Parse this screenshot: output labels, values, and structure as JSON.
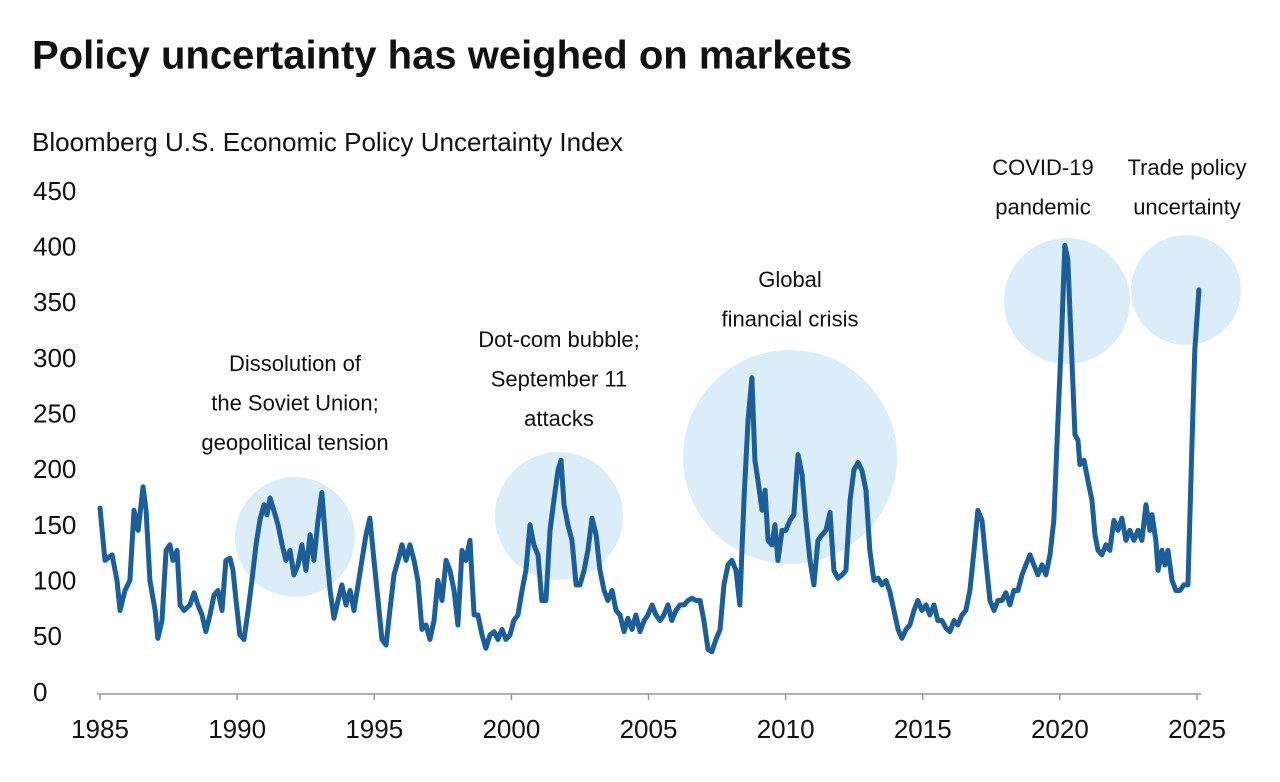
{
  "chart_data": {
    "type": "line",
    "title": "Policy uncertainty has weighed on markets",
    "subtitle": "Bloomberg U.S. Economic Policy Uncertainty Index",
    "xlim": [
      1985,
      2025
    ],
    "xticks": [
      1985,
      1990,
      1995,
      2000,
      2005,
      2010,
      2015,
      2020,
      2025
    ],
    "ylim": [
      0,
      450
    ],
    "yticks": [
      0,
      50,
      100,
      150,
      200,
      250,
      300,
      350,
      400,
      450
    ],
    "grid": false,
    "annotations": [
      {
        "text": [
          "Dissolution of",
          "the Soviet Union;",
          "geopolitical tension"
        ]
      },
      {
        "text": [
          "Dot-com bubble;",
          "September 11",
          "attacks"
        ]
      },
      {
        "text": [
          "Global",
          "financial crisis"
        ]
      },
      {
        "text": [
          "COVID-19",
          "pandemic"
        ]
      },
      {
        "text": [
          "Trade policy",
          "uncertainty"
        ]
      }
    ],
    "series": [
      {
        "color": "#1b5e98",
        "x": [
          1985.0,
          1985.18,
          1985.44,
          1985.62,
          1985.73,
          1985.91,
          1986.09,
          1986.24,
          1986.39,
          1986.57,
          1986.68,
          1986.82,
          1987.01,
          1987.11,
          1987.26,
          1987.41,
          1987.55,
          1987.66,
          1987.81,
          1987.92,
          1988.06,
          1988.28,
          1988.43,
          1988.57,
          1988.72,
          1988.86,
          1989.01,
          1989.16,
          1989.3,
          1989.45,
          1989.59,
          1989.74,
          1989.85,
          1989.96,
          1990.1,
          1990.25,
          1990.4,
          1990.54,
          1990.69,
          1990.83,
          1990.98,
          1991.09,
          1991.2,
          1991.34,
          1991.49,
          1991.64,
          1991.78,
          1991.93,
          1992.07,
          1992.22,
          1992.36,
          1992.51,
          1992.66,
          1992.8,
          1992.95,
          1993.09,
          1993.24,
          1993.39,
          1993.53,
          1993.68,
          1993.82,
          1993.97,
          1994.12,
          1994.26,
          1994.41,
          1994.55,
          1994.7,
          1994.84,
          1994.99,
          1995.14,
          1995.28,
          1995.43,
          1995.57,
          1995.72,
          1995.87,
          1996.01,
          1996.16,
          1996.3,
          1996.45,
          1996.59,
          1996.74,
          1996.89,
          1997.03,
          1997.18,
          1997.32,
          1997.47,
          1997.62,
          1997.76,
          1997.91,
          1998.05,
          1998.2,
          1998.34,
          1998.49,
          1998.64,
          1998.78,
          1998.93,
          1999.07,
          1999.22,
          1999.37,
          1999.51,
          1999.66,
          1999.8,
          1999.95,
          2000.09,
          2000.24,
          2000.39,
          2000.53,
          2000.68,
          2000.82,
          2000.97,
          2001.11,
          2001.26,
          2001.41,
          2001.55,
          2001.7,
          2001.81,
          2001.92,
          2002.06,
          2002.21,
          2002.36,
          2002.5,
          2002.65,
          2002.79,
          2002.94,
          2003.09,
          2003.23,
          2003.38,
          2003.52,
          2003.67,
          2003.82,
          2003.96,
          2004.11,
          2004.25,
          2004.4,
          2004.54,
          2004.69,
          2004.84,
          2004.98,
          2005.13,
          2005.27,
          2005.42,
          2005.56,
          2005.71,
          2005.85,
          2006.0,
          2006.15,
          2006.29,
          2006.44,
          2006.58,
          2006.73,
          2006.88,
          2007.02,
          2007.17,
          2007.31,
          2007.46,
          2007.61,
          2007.75,
          2007.9,
          2008.04,
          2008.19,
          2008.33,
          2008.48,
          2008.63,
          2008.77,
          2008.88,
          2008.99,
          2009.14,
          2009.25,
          2009.36,
          2009.5,
          2009.61,
          2009.72,
          2009.87,
          2010.01,
          2010.16,
          2010.3,
          2010.45,
          2010.6,
          2010.74,
          2010.89,
          2011.03,
          2011.18,
          2011.33,
          2011.47,
          2011.62,
          2011.76,
          2011.91,
          2012.06,
          2012.2,
          2012.35,
          2012.49,
          2012.64,
          2012.78,
          2012.93,
          2013.07,
          2013.22,
          2013.37,
          2013.51,
          2013.66,
          2013.8,
          2013.95,
          2014.1,
          2014.24,
          2014.39,
          2014.53,
          2014.68,
          2014.82,
          2014.97,
          2015.12,
          2015.26,
          2015.41,
          2015.55,
          2015.7,
          2015.85,
          2015.99,
          2016.14,
          2016.28,
          2016.43,
          2016.57,
          2016.72,
          2016.87,
          2017.01,
          2017.16,
          2017.3,
          2017.45,
          2017.6,
          2017.74,
          2017.89,
          2018.03,
          2018.18,
          2018.32,
          2018.47,
          2018.62,
          2018.76,
          2018.91,
          2019.05,
          2019.2,
          2019.35,
          2019.49,
          2019.64,
          2019.78,
          2019.93,
          2020.07,
          2020.18,
          2020.29,
          2020.44,
          2020.55,
          2020.66,
          2020.73,
          2020.88,
          2021.02,
          2021.17,
          2021.28,
          2021.39,
          2021.53,
          2021.68,
          2021.82,
          2021.97,
          2022.12,
          2022.26,
          2022.41,
          2022.55,
          2022.7,
          2022.85,
          2022.99,
          2023.14,
          2023.28,
          2023.36,
          2023.5,
          2023.58,
          2023.72,
          2023.83,
          2023.94,
          2024.09,
          2024.23,
          2024.38,
          2024.52,
          2024.67,
          2024.81,
          2024.92,
          2025.07
        ],
        "values": [
          167,
          120,
          125,
          102,
          75,
          93,
          102,
          165,
          147,
          186,
          165,
          102,
          75,
          50,
          66,
          129,
          134,
          120,
          129,
          80,
          75,
          80,
          91,
          80,
          71,
          56,
          71,
          89,
          93,
          75,
          120,
          122,
          111,
          84,
          53,
          49,
          75,
          102,
          134,
          156,
          170,
          161,
          176,
          165,
          152,
          134,
          120,
          129,
          107,
          116,
          134,
          111,
          143,
          120,
          156,
          181,
          134,
          93,
          68,
          84,
          98,
          80,
          93,
          75,
          98,
          120,
          143,
          158,
          120,
          84,
          49,
          44,
          75,
          107,
          120,
          134,
          120,
          134,
          120,
          102,
          58,
          62,
          49,
          66,
          102,
          84,
          120,
          111,
          93,
          62,
          129,
          120,
          138,
          71,
          71,
          53,
          41,
          53,
          56,
          49,
          58,
          49,
          53,
          66,
          71,
          93,
          111,
          152,
          134,
          125,
          84,
          84,
          147,
          174,
          201,
          210,
          170,
          152,
          138,
          98,
          98,
          111,
          129,
          158,
          143,
          111,
          93,
          84,
          93,
          75,
          71,
          56,
          68,
          58,
          71,
          56,
          66,
          71,
          80,
          71,
          66,
          71,
          80,
          66,
          75,
          80,
          80,
          84,
          86,
          84,
          84,
          66,
          40,
          38,
          49,
          58,
          98,
          116,
          120,
          111,
          80,
          174,
          246,
          284,
          210,
          192,
          165,
          183,
          138,
          134,
          152,
          120,
          147,
          147,
          156,
          161,
          215,
          197,
          156,
          120,
          98,
          138,
          143,
          147,
          163,
          111,
          104,
          107,
          111,
          174,
          201,
          208,
          201,
          183,
          129,
          102,
          104,
          98,
          102,
          92,
          75,
          58,
          50,
          58,
          62,
          75,
          84,
          75,
          80,
          71,
          80,
          66,
          66,
          59,
          56,
          66,
          62,
          71,
          75,
          93,
          129,
          165,
          156,
          120,
          84,
          75,
          84,
          84,
          91,
          80,
          93,
          93,
          107,
          116,
          125,
          116,
          107,
          116,
          107,
          125,
          156,
          246,
          327,
          403,
          390,
          300,
          233,
          228,
          206,
          210,
          192,
          174,
          143,
          129,
          125,
          134,
          129,
          156,
          147,
          158,
          138,
          147,
          138,
          147,
          138,
          170,
          147,
          161,
          138,
          111,
          129,
          116,
          129,
          102,
          93,
          93,
          98,
          98,
          219,
          309,
          363
        ]
      }
    ]
  }
}
